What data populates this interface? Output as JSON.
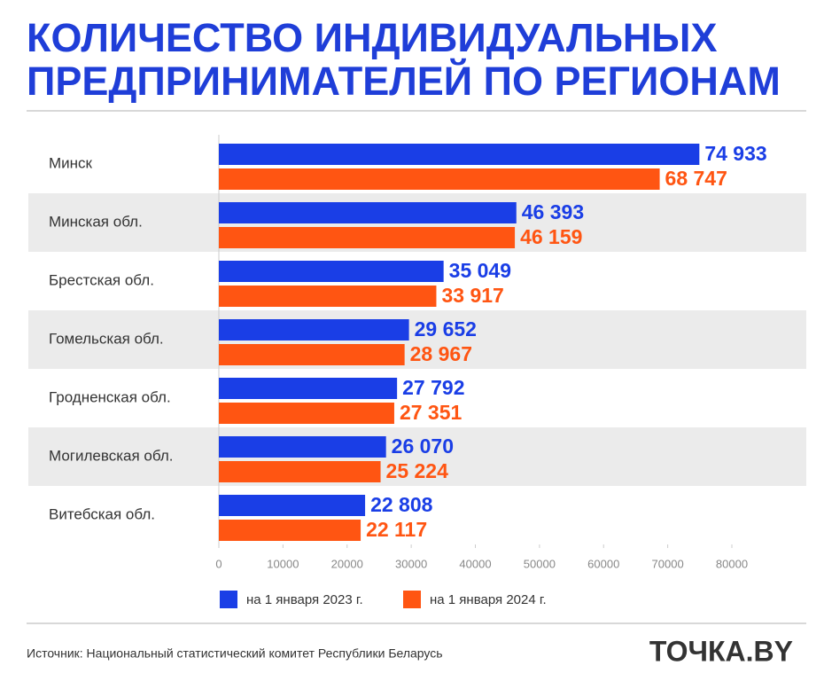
{
  "chart_data": {
    "type": "bar",
    "orientation": "horizontal",
    "title": [
      "КОЛИЧЕСТВО ИНДИВИДУАЛЬНЫХ",
      "ПРЕДПРИНИМАТЕЛЕЙ ПО РЕГИОНАМ"
    ],
    "categories": [
      "Минск",
      "Минская обл.",
      "Брестская обл.",
      "Гомельская обл.",
      "Гродненская обл.",
      "Могилевская обл.",
      "Витебская обл."
    ],
    "series": [
      {
        "name": "на 1 января 2023 г.",
        "color": "#1a3ee6",
        "values": [
          74933,
          46393,
          35049,
          29652,
          27792,
          26070,
          22808
        ],
        "value_labels": [
          "74 933",
          "46 393",
          "35 049",
          "29 652",
          "27 792",
          "26 070",
          "22 808"
        ]
      },
      {
        "name": "на 1 января 2024 г.",
        "color": "#ff5512",
        "values": [
          68747,
          46159,
          33917,
          28967,
          27351,
          25224,
          22117
        ],
        "value_labels": [
          "68 747",
          "46 159",
          "33 917",
          "28 967",
          "27 351",
          "25 224",
          "22 117"
        ]
      }
    ],
    "xlim": [
      0,
      80000
    ],
    "xticks": [
      0,
      10000,
      20000,
      30000,
      40000,
      50000,
      60000,
      70000,
      80000
    ],
    "source": "Источник: Национальный статистический комитет Республики Беларусь",
    "logo": "ТОЧКА.BY"
  }
}
